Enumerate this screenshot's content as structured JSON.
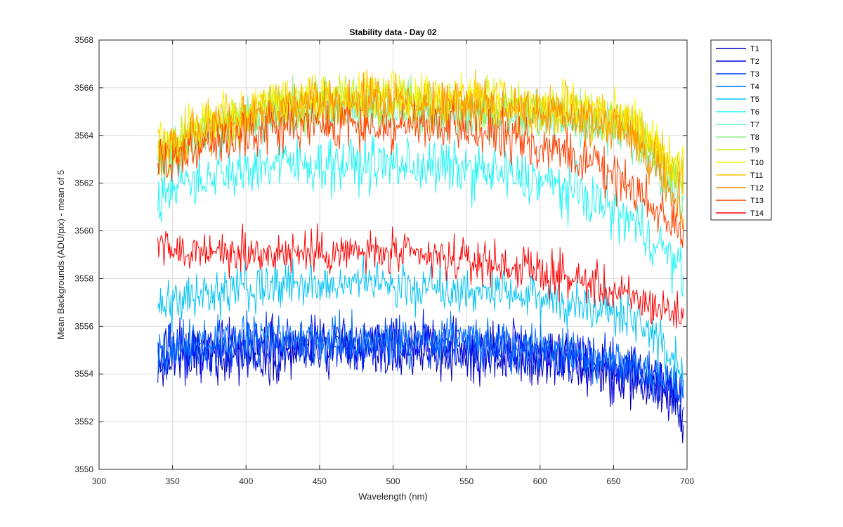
{
  "chart_data": {
    "type": "line",
    "title": "Stability data - Day 02",
    "xlabel": "Wavelength (nm)",
    "ylabel": "Mean Backgrounds (ADU/pix) - mean of 5",
    "xlim": [
      300,
      700
    ],
    "ylim": [
      3550,
      3568
    ],
    "xticks": [
      "300",
      "350",
      "400",
      "450",
      "500",
      "550",
      "600",
      "650",
      "700"
    ],
    "yticks": [
      "3550",
      "3552",
      "3554",
      "3556",
      "3558",
      "3560",
      "3562",
      "3564",
      "3566",
      "3568"
    ],
    "grid": true,
    "legend_position": "outside-top-right",
    "x_profile": [
      340,
      350,
      360,
      380,
      400,
      420,
      440,
      460,
      480,
      500,
      520,
      540,
      560,
      580,
      600,
      620,
      640,
      650,
      660,
      670,
      680,
      690,
      698
    ],
    "series": [
      {
        "name": "T1",
        "color": "#0000b3",
        "noise": 1.1,
        "values": [
          3554.4,
          3554.6,
          3554.7,
          3554.8,
          3554.9,
          3555.0,
          3555.0,
          3555.0,
          3555.0,
          3555.0,
          3555.0,
          3554.9,
          3554.9,
          3554.8,
          3554.6,
          3554.4,
          3554.2,
          3554.0,
          3553.9,
          3553.7,
          3553.4,
          3552.9,
          3552.4
        ]
      },
      {
        "name": "T2",
        "color": "#0000e6",
        "noise": 1.0,
        "values": [
          3554.6,
          3554.8,
          3554.9,
          3555.0,
          3555.1,
          3555.2,
          3555.2,
          3555.2,
          3555.2,
          3555.2,
          3555.2,
          3555.1,
          3555.1,
          3555.0,
          3554.8,
          3554.6,
          3554.4,
          3554.2,
          3554.1,
          3553.9,
          3553.6,
          3553.1,
          3552.6
        ]
      },
      {
        "name": "T3",
        "color": "#0033ff",
        "noise": 0.9,
        "values": [
          3554.8,
          3554.9,
          3555.0,
          3555.1,
          3555.2,
          3555.3,
          3555.3,
          3555.3,
          3555.3,
          3555.3,
          3555.3,
          3555.2,
          3555.2,
          3555.1,
          3554.9,
          3554.8,
          3554.6,
          3554.4,
          3554.3,
          3554.1,
          3553.8,
          3553.4,
          3553.0
        ]
      },
      {
        "name": "T4",
        "color": "#0073ff",
        "noise": 0.9,
        "values": [
          3555.0,
          3555.1,
          3555.2,
          3555.3,
          3555.4,
          3555.4,
          3555.4,
          3555.4,
          3555.4,
          3555.4,
          3555.4,
          3555.4,
          3555.3,
          3555.2,
          3555.1,
          3554.9,
          3554.7,
          3554.6,
          3554.4,
          3554.2,
          3554.0,
          3553.6,
          3553.2
        ]
      },
      {
        "name": "T5",
        "color": "#00c3f6",
        "noise": 0.9,
        "values": [
          3556.8,
          3557.0,
          3557.1,
          3557.4,
          3557.6,
          3557.7,
          3557.7,
          3557.7,
          3557.7,
          3557.6,
          3557.6,
          3557.5,
          3557.4,
          3557.3,
          3557.2,
          3557.0,
          3556.8,
          3556.6,
          3556.4,
          3556.0,
          3555.4,
          3554.8,
          3554.2
        ]
      },
      {
        "name": "T6",
        "color": "#18f5f5",
        "noise": 1.0,
        "values": [
          3561.3,
          3561.8,
          3562.1,
          3562.4,
          3562.6,
          3562.8,
          3562.8,
          3562.8,
          3562.8,
          3562.8,
          3562.7,
          3562.6,
          3562.5,
          3562.3,
          3562.1,
          3561.7,
          3561.2,
          3560.8,
          3560.5,
          3560.0,
          3559.5,
          3558.8,
          3558.0
        ]
      },
      {
        "name": "T7",
        "color": "#66f2c2",
        "noise": 0.9,
        "values": [
          3563.0,
          3563.4,
          3563.7,
          3564.2,
          3564.6,
          3564.9,
          3565.0,
          3565.1,
          3565.1,
          3565.1,
          3565.0,
          3564.9,
          3564.9,
          3564.8,
          3564.7,
          3564.6,
          3564.4,
          3564.2,
          3564.0,
          3563.6,
          3562.9,
          3562.0,
          3561.2
        ]
      },
      {
        "name": "T8",
        "color": "#8cf28c",
        "noise": 0.9,
        "values": [
          3563.2,
          3563.5,
          3563.8,
          3564.3,
          3564.7,
          3565.0,
          3565.2,
          3565.3,
          3565.3,
          3565.3,
          3565.2,
          3565.1,
          3565.1,
          3565.0,
          3564.9,
          3564.8,
          3564.6,
          3564.4,
          3564.2,
          3563.8,
          3563.1,
          3562.3,
          3561.5
        ]
      },
      {
        "name": "T9",
        "color": "#c3f20f",
        "noise": 0.9,
        "values": [
          3563.4,
          3563.7,
          3564.0,
          3564.5,
          3564.9,
          3565.2,
          3565.4,
          3565.5,
          3565.5,
          3565.5,
          3565.4,
          3565.3,
          3565.3,
          3565.2,
          3565.1,
          3565.0,
          3564.8,
          3564.6,
          3564.4,
          3564.0,
          3563.3,
          3562.6,
          3562.0
        ]
      },
      {
        "name": "T10",
        "color": "#f7f700",
        "noise": 0.9,
        "values": [
          3563.6,
          3563.8,
          3564.1,
          3564.6,
          3565.0,
          3565.3,
          3565.5,
          3565.6,
          3565.7,
          3565.7,
          3565.6,
          3565.5,
          3565.5,
          3565.4,
          3565.3,
          3565.2,
          3565.0,
          3564.8,
          3564.6,
          3564.2,
          3563.5,
          3562.9,
          3562.3
        ]
      },
      {
        "name": "T11",
        "color": "#ffc300",
        "noise": 0.9,
        "values": [
          3563.5,
          3563.7,
          3564.0,
          3564.5,
          3564.9,
          3565.2,
          3565.4,
          3565.5,
          3565.6,
          3565.6,
          3565.5,
          3565.4,
          3565.4,
          3565.3,
          3565.2,
          3565.1,
          3564.9,
          3564.7,
          3564.5,
          3564.1,
          3563.4,
          3562.8,
          3562.2
        ]
      },
      {
        "name": "T12",
        "color": "#ff8c00",
        "noise": 0.9,
        "values": [
          3563.2,
          3563.4,
          3563.8,
          3564.4,
          3564.8,
          3565.1,
          3565.3,
          3565.4,
          3565.4,
          3565.4,
          3565.3,
          3565.2,
          3565.1,
          3565.0,
          3564.9,
          3564.7,
          3564.5,
          3564.2,
          3563.9,
          3563.4,
          3562.6,
          3561.8,
          3561.0
        ]
      },
      {
        "name": "T13",
        "color": "#ff4000",
        "noise": 0.9,
        "values": [
          3563.0,
          3562.9,
          3563.1,
          3563.6,
          3564.0,
          3564.3,
          3564.4,
          3564.4,
          3564.4,
          3564.4,
          3564.3,
          3564.2,
          3564.1,
          3563.9,
          3563.6,
          3563.2,
          3562.7,
          3562.3,
          3562.0,
          3561.5,
          3560.9,
          3560.4,
          3559.9
        ]
      },
      {
        "name": "T14",
        "color": "#ff0000",
        "noise": 0.8,
        "values": [
          3559.3,
          3559.2,
          3559.1,
          3559.1,
          3559.1,
          3559.1,
          3559.1,
          3559.1,
          3559.1,
          3559.0,
          3558.9,
          3558.8,
          3558.7,
          3558.5,
          3558.3,
          3558.0,
          3557.7,
          3557.4,
          3557.2,
          3557.0,
          3556.8,
          3556.6,
          3556.4
        ]
      }
    ]
  }
}
